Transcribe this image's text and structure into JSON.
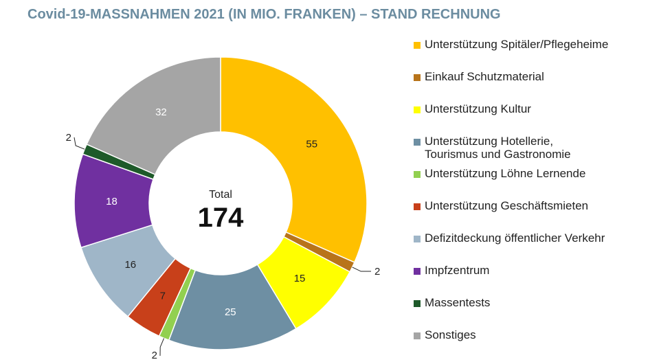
{
  "chart_data": {
    "type": "pie",
    "title": "Covid-19-MASSNAHMEN 2021 (IN MIO. FRANKEN) – STAND RECHNUNG",
    "center_label": "Total",
    "center_value": "174",
    "legend_position": "right",
    "slices": [
      {
        "label": "Unterstützung Spitäler/Pflegeheime",
        "value": 55,
        "display": "55",
        "color": "#FFC000",
        "label_color": "#222222"
      },
      {
        "label": "Einkauf Schutzmaterial",
        "value": 2,
        "display": "2",
        "color": "#B8741A",
        "label_color": "#222222"
      },
      {
        "label": "Unterstützung Kultur",
        "value": 15,
        "display": "15",
        "color": "#FFFF00",
        "label_color": "#222222"
      },
      {
        "label": "Unterstützung Hotellerie,\nTourismus und Gastronomie",
        "value": 25,
        "display": "25",
        "color": "#6E8FA3",
        "label_color": "#ffffff"
      },
      {
        "label": "Unterstützung Löhne Lernende",
        "value": 2,
        "display": "2",
        "color": "#92D050",
        "label_color": "#222222"
      },
      {
        "label": "Unterstützung Geschäftsmieten",
        "value": 7,
        "display": "7",
        "color": "#C8401A",
        "label_color": "#222222"
      },
      {
        "label": "Defizitdeckung öffentlicher Verkehr",
        "value": 16,
        "display": "16",
        "color": "#9FB6C8",
        "label_color": "#222222"
      },
      {
        "label": "Impfzentrum",
        "value": 18,
        "display": "18",
        "color": "#7030A0",
        "label_color": "#ffffff"
      },
      {
        "label": "Massentests",
        "value": 2,
        "display": "2",
        "color": "#1E5A2A",
        "label_color": "#222222"
      },
      {
        "label": "Sonstiges",
        "value": 32,
        "display": "32",
        "color": "#A5A5A5",
        "label_color": "#ffffff"
      }
    ]
  }
}
